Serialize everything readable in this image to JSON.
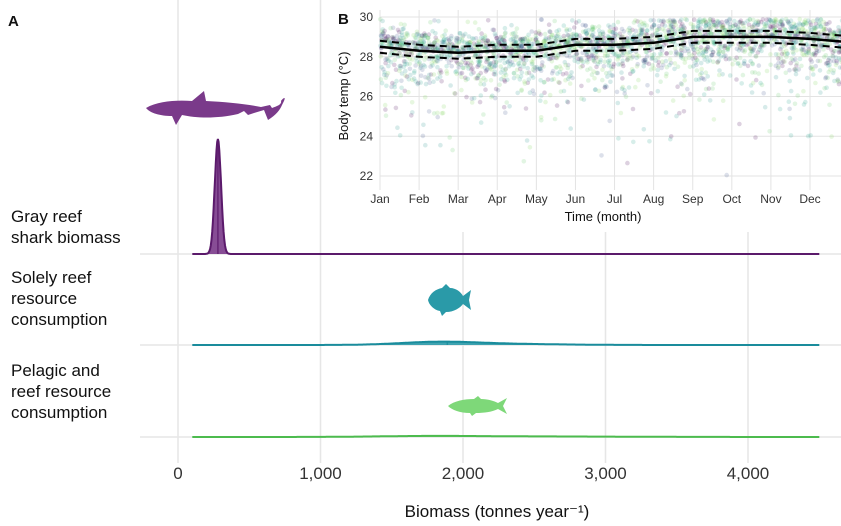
{
  "panel_a_letter": "A",
  "panel_b_letter": "B",
  "chart_data": [
    {
      "panel": "A",
      "type": "area",
      "subtype": "ridgeline-density",
      "xlabel": "Biomass (tonnes year⁻¹)",
      "xlim": [
        -250,
        4580
      ],
      "xticks": [
        0,
        1000,
        2000,
        3000,
        4000
      ],
      "xtick_labels": [
        "0",
        "1,000",
        "2,000",
        "3,000",
        "4,000"
      ],
      "grid": true,
      "series": [
        {
          "name": "Gray reef shark biomass",
          "label_lines": [
            "Gray reef",
            "shark biomass"
          ],
          "color": "#5b1a6b",
          "fill": "#7a3a8a",
          "icon": "shark-silhouette",
          "range": [
            100,
            4500
          ],
          "median": 280,
          "components": [
            {
              "mean": 280,
              "sd": 22,
              "peak": 1.0
            }
          ]
        },
        {
          "name": "Solely reef resource consumption",
          "label_lines": [
            "Solely reef",
            "resource",
            "consumption"
          ],
          "color": "#1a8c9c",
          "fill": "#2a9aa8",
          "icon": "reef-fish-silhouette",
          "range": [
            100,
            4500
          ],
          "median": 1890,
          "components": [
            {
              "mean": 1820,
              "sd": 260,
              "peak": 0.17
            },
            {
              "mean": 2200,
              "sd": 420,
              "peak": 0.08
            }
          ]
        },
        {
          "name": "Pelagic and reef resource consumption",
          "label_lines": [
            "Pelagic and",
            "reef resource",
            "consumption"
          ],
          "color": "#4cbb4e",
          "fill": "#7ed879",
          "icon": "pelagic-fish-silhouette",
          "range": [
            100,
            4500
          ],
          "median": 2130,
          "components": [
            {
              "mean": 1750,
              "sd": 350,
              "peak": 0.07
            },
            {
              "mean": 2450,
              "sd": 650,
              "peak": 0.05
            }
          ]
        }
      ]
    },
    {
      "panel": "B",
      "type": "scatter",
      "xlabel": "Time (month)",
      "ylabel": "Body temp (°C)",
      "x_categories": [
        "Jan",
        "Feb",
        "Mar",
        "Apr",
        "May",
        "Jun",
        "Jul",
        "Aug",
        "Sep",
        "Oct",
        "Nov",
        "Dec"
      ],
      "xlim": [
        1,
        13.2
      ],
      "ylim": [
        21.6,
        30.0
      ],
      "yticks": [
        22,
        24,
        26,
        28,
        30
      ],
      "grid": true,
      "scatter_palette": [
        "#440154",
        "#3b528b",
        "#21908d",
        "#5dc863",
        "#7ad151",
        "#1f9e89"
      ],
      "trend": {
        "color": "#000000",
        "x": [
          1,
          2,
          3,
          4,
          5,
          6,
          7,
          8,
          9,
          10,
          11,
          12,
          13.2
        ],
        "mean": [
          28.5,
          28.3,
          28.2,
          28.3,
          28.3,
          28.6,
          28.6,
          28.7,
          29.0,
          29.0,
          29.0,
          28.9,
          28.7
        ],
        "ci_half_width": 0.3
      }
    }
  ]
}
